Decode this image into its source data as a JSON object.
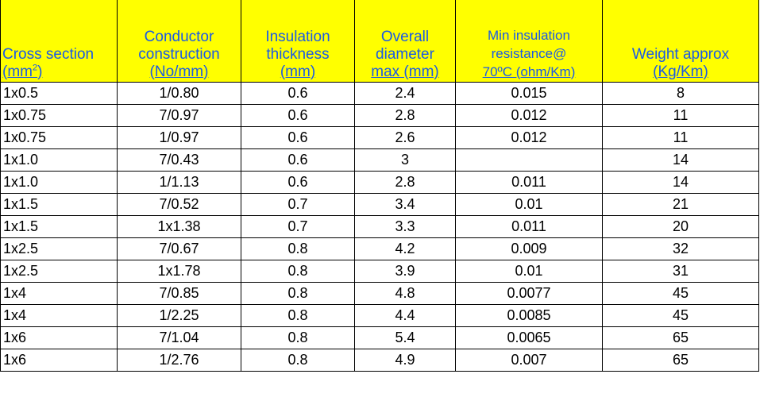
{
  "header": {
    "cross_section": {
      "line1": "Cross section",
      "line2_prefix": "(mm",
      "line2_sup": "2",
      "line2_suffix": ")"
    },
    "conductor": {
      "line1": "Conductor",
      "line2": "construction",
      "line3": "(No/mm)"
    },
    "insulation": {
      "line1": "Insulation",
      "line2": "thickness",
      "line3": "(mm)"
    },
    "diameter": {
      "line1": "Overall",
      "line2": "diameter",
      "line3": "max (mm)"
    },
    "resistance": {
      "line1": "Min insulation",
      "line2": "resistance@",
      "line3": "70ºC (ohm/Km)"
    },
    "weight": {
      "line1": "Weight approx",
      "line2": "(Kg/Km)"
    }
  },
  "rows": [
    {
      "cross_section": "1x0.5",
      "conductor": "1/0.80",
      "insulation": "0.6",
      "diameter": "2.4",
      "resistance": "0.015",
      "weight": "8"
    },
    {
      "cross_section": "1x0.75",
      "conductor": "7/0.97",
      "insulation": "0.6",
      "diameter": "2.8",
      "resistance": "0.012",
      "weight": "11"
    },
    {
      "cross_section": "1x0.75",
      "conductor": "1/0.97",
      "insulation": "0.6",
      "diameter": "2.6",
      "resistance": "0.012",
      "weight": "11"
    },
    {
      "cross_section": "1x1.0",
      "conductor": "7/0.43",
      "insulation": "0.6",
      "diameter": "3",
      "resistance": "",
      "weight": "14"
    },
    {
      "cross_section": "1x1.0",
      "conductor": "1/1.13",
      "insulation": "0.6",
      "diameter": "2.8",
      "resistance": "0.011",
      "weight": "14"
    },
    {
      "cross_section": "1x1.5",
      "conductor": "7/0.52",
      "insulation": "0.7",
      "diameter": "3.4",
      "resistance": "0.01",
      "weight": "21"
    },
    {
      "cross_section": "1x1.5",
      "conductor": "1x1.38",
      "insulation": "0.7",
      "diameter": "3.3",
      "resistance": "0.011",
      "weight": "20"
    },
    {
      "cross_section": "1x2.5",
      "conductor": "7/0.67",
      "insulation": "0.8",
      "diameter": "4.2",
      "resistance": "0.009",
      "weight": "32"
    },
    {
      "cross_section": "1x2.5",
      "conductor": "1x1.78",
      "insulation": "0.8",
      "diameter": "3.9",
      "resistance": "0.01",
      "weight": "31"
    },
    {
      "cross_section": "1x4",
      "conductor": "7/0.85",
      "insulation": "0.8",
      "diameter": "4.8",
      "resistance": "0.0077",
      "weight": "45"
    },
    {
      "cross_section": "1x4",
      "conductor": "1/2.25",
      "insulation": "0.8",
      "diameter": "4.4",
      "resistance": "0.0085",
      "weight": "45"
    },
    {
      "cross_section": "1x6",
      "conductor": "7/1.04",
      "insulation": "0.8",
      "diameter": "5.4",
      "resistance": "0.0065",
      "weight": "65"
    },
    {
      "cross_section": "1x6",
      "conductor": "1/2.76",
      "insulation": "0.8",
      "diameter": "4.9",
      "resistance": "0.007",
      "weight": "65"
    }
  ],
  "colors": {
    "header_background": "#ffff00",
    "header_text": "#1a5ae6",
    "body_text": "#000000",
    "grid_line": "#000000"
  }
}
